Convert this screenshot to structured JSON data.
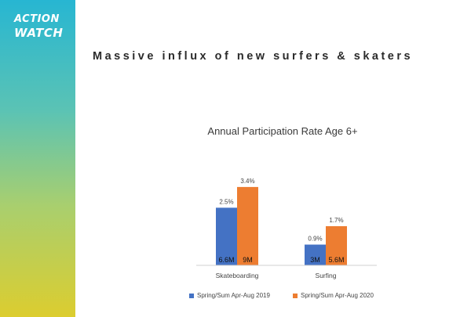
{
  "logo": {
    "line1": "ACTION",
    "line2": "WATCH"
  },
  "slide_title": "Massive influx of new surfers & skaters",
  "chart_data": {
    "type": "bar",
    "title": "Annual Participation Rate Age 6+",
    "categories": [
      "Skateboarding",
      "Surfing"
    ],
    "series": [
      {
        "name": "Spring/Sum Apr-Aug 2019",
        "color": "#4472c4",
        "values": [
          2.5,
          0.9
        ],
        "top_labels": [
          "2.5%",
          "0.9%"
        ],
        "inside_labels": [
          "6.6M",
          "3M"
        ]
      },
      {
        "name": "Spring/Sum Apr-Aug 2020",
        "color": "#ed7d31",
        "values": [
          3.4,
          1.7
        ],
        "top_labels": [
          "3.4%",
          "1.7%"
        ],
        "inside_labels": [
          "9M",
          "5.6M"
        ]
      }
    ],
    "xlabel": "",
    "ylabel": "",
    "ylim": [
      0,
      3.6
    ],
    "grid": false,
    "legend": "bottom"
  }
}
